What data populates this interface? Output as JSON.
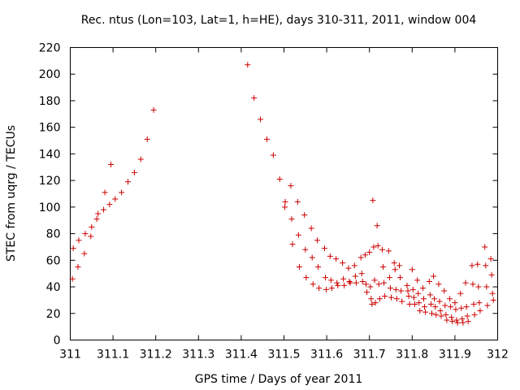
{
  "chart_data": {
    "type": "scatter",
    "title": "Rec. ntus (Lon=103, Lat=1, h=HE), days 310-311, 2011, window 004",
    "xlabel": "GPS time / Days of year 2011",
    "ylabel": "STEC from uqrg / TECUs",
    "xlim": [
      311,
      312
    ],
    "ylim": [
      0,
      220
    ],
    "xticks": [
      "311",
      "311.1",
      "311.2",
      "311.3",
      "311.4",
      "311.5",
      "311.6",
      "311.7",
      "311.8",
      "311.9",
      "312"
    ],
    "yticks": [
      "0",
      "20",
      "40",
      "60",
      "80",
      "100",
      "120",
      "140",
      "160",
      "180",
      "200",
      "220"
    ],
    "grid": false,
    "marker": "+",
    "color": "#cc0000",
    "series": [
      {
        "points": [
          [
            311.005,
            46
          ],
          [
            311.007,
            69
          ],
          [
            311.018,
            55
          ],
          [
            311.02,
            75
          ],
          [
            311.033,
            65
          ],
          [
            311.035,
            80
          ],
          [
            311.048,
            78
          ],
          [
            311.05,
            85
          ],
          [
            311.062,
            91
          ],
          [
            311.065,
            95
          ],
          [
            311.078,
            98
          ],
          [
            311.081,
            111
          ],
          [
            311.092,
            102
          ],
          [
            311.095,
            132
          ],
          [
            311.105,
            106
          ],
          [
            311.12,
            111
          ],
          [
            311.135,
            119
          ],
          [
            311.15,
            126
          ],
          [
            311.165,
            136
          ],
          [
            311.18,
            151
          ],
          [
            311.195,
            173
          ],
          [
            311.415,
            207
          ],
          [
            311.43,
            182
          ],
          [
            311.445,
            166
          ],
          [
            311.46,
            151
          ],
          [
            311.475,
            139
          ],
          [
            311.49,
            121
          ],
          [
            311.502,
            100
          ],
          [
            311.503,
            104
          ],
          [
            311.516,
            116
          ],
          [
            311.518,
            91
          ],
          [
            311.52,
            72
          ],
          [
            311.532,
            104
          ],
          [
            311.534,
            79
          ],
          [
            311.536,
            55
          ],
          [
            311.548,
            94
          ],
          [
            311.55,
            68
          ],
          [
            311.552,
            47
          ],
          [
            311.564,
            84
          ],
          [
            311.566,
            62
          ],
          [
            311.568,
            42
          ],
          [
            311.578,
            75
          ],
          [
            311.58,
            55
          ],
          [
            311.582,
            39
          ],
          [
            311.595,
            69
          ],
          [
            311.597,
            47
          ],
          [
            311.599,
            38
          ],
          [
            311.608,
            63
          ],
          [
            311.61,
            45
          ],
          [
            311.612,
            39
          ],
          [
            311.622,
            61
          ],
          [
            311.624,
            43
          ],
          [
            311.626,
            41
          ],
          [
            311.637,
            58
          ],
          [
            311.639,
            46
          ],
          [
            311.641,
            41
          ],
          [
            311.651,
            54
          ],
          [
            311.653,
            44
          ],
          [
            311.655,
            43
          ],
          [
            311.665,
            56
          ],
          [
            311.667,
            48
          ],
          [
            311.669,
            43
          ],
          [
            311.68,
            62
          ],
          [
            311.682,
            50
          ],
          [
            311.684,
            44
          ],
          [
            311.69,
            64
          ],
          [
            311.692,
            42
          ],
          [
            311.694,
            36
          ],
          [
            311.7,
            66
          ],
          [
            311.702,
            40
          ],
          [
            311.704,
            31
          ],
          [
            311.706,
            27
          ],
          [
            311.708,
            105
          ],
          [
            311.71,
            70
          ],
          [
            311.712,
            45
          ],
          [
            311.714,
            28
          ],
          [
            311.718,
            86
          ],
          [
            311.72,
            71
          ],
          [
            311.722,
            42
          ],
          [
            311.724,
            31
          ],
          [
            311.73,
            68
          ],
          [
            311.732,
            55
          ],
          [
            311.734,
            43
          ],
          [
            311.736,
            33
          ],
          [
            311.745,
            67
          ],
          [
            311.747,
            47
          ],
          [
            311.749,
            39
          ],
          [
            311.751,
            32
          ],
          [
            311.758,
            58
          ],
          [
            311.76,
            53
          ],
          [
            311.762,
            38
          ],
          [
            311.764,
            31
          ],
          [
            311.77,
            56
          ],
          [
            311.772,
            47
          ],
          [
            311.774,
            37
          ],
          [
            311.776,
            29
          ],
          [
            311.788,
            41
          ],
          [
            311.79,
            37
          ],
          [
            311.792,
            33
          ],
          [
            311.794,
            27
          ],
          [
            311.8,
            53
          ],
          [
            311.802,
            38
          ],
          [
            311.804,
            32
          ],
          [
            311.806,
            27
          ],
          [
            311.812,
            45
          ],
          [
            311.814,
            35
          ],
          [
            311.816,
            28
          ],
          [
            311.818,
            22
          ],
          [
            311.825,
            39
          ],
          [
            311.827,
            31
          ],
          [
            311.829,
            25
          ],
          [
            311.831,
            21
          ],
          [
            311.84,
            44
          ],
          [
            311.842,
            34
          ],
          [
            311.844,
            27
          ],
          [
            311.846,
            20
          ],
          [
            311.85,
            48
          ],
          [
            311.852,
            31
          ],
          [
            311.854,
            25
          ],
          [
            311.856,
            19
          ],
          [
            311.862,
            42
          ],
          [
            311.864,
            29
          ],
          [
            311.866,
            22
          ],
          [
            311.868,
            18
          ],
          [
            311.875,
            37
          ],
          [
            311.877,
            26
          ],
          [
            311.879,
            19
          ],
          [
            311.881,
            15
          ],
          [
            311.888,
            31
          ],
          [
            311.89,
            25
          ],
          [
            311.892,
            17
          ],
          [
            311.894,
            14
          ],
          [
            311.9,
            28
          ],
          [
            311.902,
            23
          ],
          [
            311.904,
            15
          ],
          [
            311.906,
            13
          ],
          [
            311.913,
            35
          ],
          [
            311.915,
            24
          ],
          [
            311.917,
            16
          ],
          [
            311.919,
            13
          ],
          [
            311.925,
            43
          ],
          [
            311.927,
            25
          ],
          [
            311.929,
            18
          ],
          [
            311.931,
            14
          ],
          [
            311.94,
            56
          ],
          [
            311.942,
            42
          ],
          [
            311.944,
            27
          ],
          [
            311.946,
            19
          ],
          [
            311.953,
            57
          ],
          [
            311.955,
            40
          ],
          [
            311.957,
            28
          ],
          [
            311.959,
            22
          ],
          [
            311.97,
            70
          ],
          [
            311.972,
            56
          ],
          [
            311.974,
            40
          ],
          [
            311.976,
            26
          ],
          [
            311.984,
            61
          ],
          [
            311.986,
            49
          ],
          [
            311.988,
            35
          ],
          [
            311.99,
            30
          ]
        ]
      }
    ]
  }
}
